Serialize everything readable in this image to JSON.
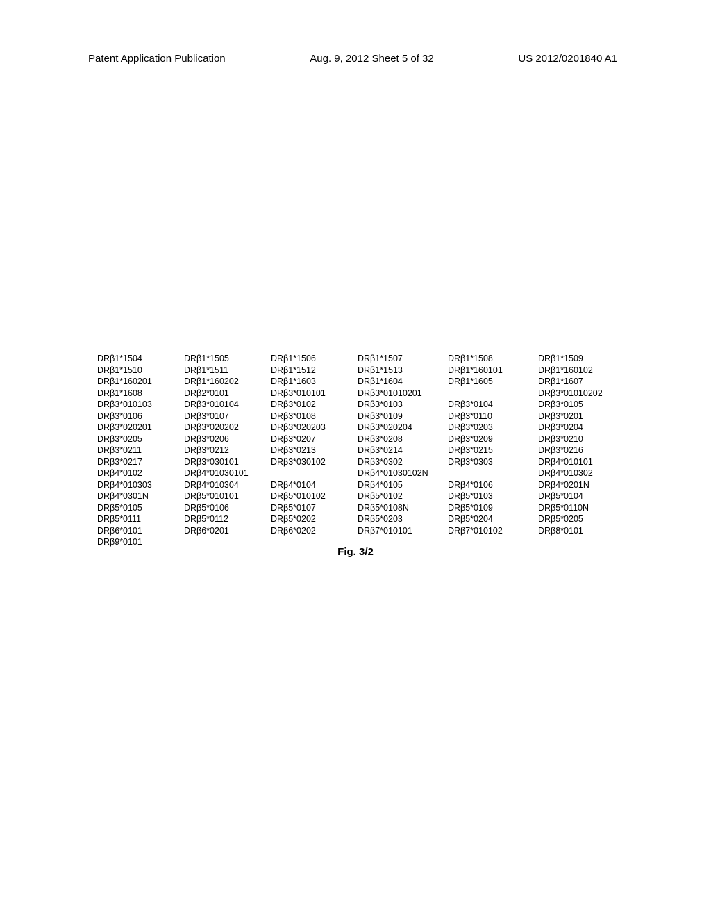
{
  "header": {
    "left": "Patent Application Publication",
    "center": "Aug. 9, 2012  Sheet 5 of 32",
    "right": "US 2012/0201840 A1"
  },
  "figure_caption": "Fig. 3/2",
  "allele_rows": [
    {
      "cells": [
        "DRβ1*1504",
        "DRβ1*1505",
        "DRβ1*1506",
        "DRβ1*1507",
        "DRβ1*1508",
        "DRβ1*1509"
      ]
    },
    {
      "cells": [
        "DRβ1*1510",
        "DRβ1*1511",
        "DRβ1*1512",
        "DRβ1*1513",
        "DRβ1*160101",
        "DRβ1*160102"
      ]
    },
    {
      "cells": [
        "DRβ1*160201",
        "DRβ1*160202",
        "DRβ1*1603",
        "DRβ1*1604",
        "DRβ1*1605",
        "DRβ1*1607"
      ]
    },
    {
      "cells": [
        "DRβ1*1608",
        "DRβ2*0101",
        "DRβ3*010101",
        "DRβ3*01010201",
        "",
        "DRβ3*01010202"
      ],
      "span": [
        false,
        false,
        false,
        true,
        false,
        false
      ],
      "spanIndex": 3
    },
    {
      "cells": [
        "DRβ3*010103",
        "DRβ3*010104",
        "DRβ3*0102",
        "DRβ3*0103",
        "DRβ3*0104",
        "DRβ3*0105"
      ]
    },
    {
      "cells": [
        "DRβ3*0106",
        "DRβ3*0107",
        "DRβ3*0108",
        "DRβ3*0109",
        "DRβ3*0110",
        "DRβ3*0201"
      ]
    },
    {
      "cells": [
        "DRβ3*020201",
        "DRβ3*020202",
        "DRβ3*020203",
        "DRβ3*020204",
        "DRβ3*0203",
        "DRβ3*0204"
      ]
    },
    {
      "cells": [
        "DRβ3*0205",
        "DRβ3*0206",
        "DRβ3*0207",
        "DRβ3*0208",
        "DRβ3*0209",
        "DRβ3*0210"
      ]
    },
    {
      "cells": [
        "DRβ3*0211",
        "DRβ3*0212",
        "DRβ3*0213",
        "DRβ3*0214",
        "DRβ3*0215",
        "DRβ3*0216"
      ]
    },
    {
      "cells": [
        "DRβ3*0217",
        "DRβ3*030101",
        "DRβ3*030102",
        "DRβ3*0302",
        "DRβ3*0303",
        "DRβ4*010101"
      ]
    },
    {
      "cells": [
        "DRβ4*0102",
        "DRβ4*01030101",
        "",
        "DRβ4*01030102N",
        "",
        "DRβ4*010302"
      ],
      "spanIndices": [
        1,
        3
      ]
    },
    {
      "cells": [
        "DRβ4*010303",
        "DRβ4*010304",
        "DRβ4*0104",
        "DRβ4*0105",
        "DRβ4*0106",
        "DRβ4*0201N"
      ]
    },
    {
      "cells": [
        "DRβ4*0301N",
        "DRβ5*010101",
        "DRβ5*010102",
        "DRβ5*0102",
        "DRβ5*0103",
        "DRβ5*0104"
      ]
    },
    {
      "cells": [
        "DRβ5*0105",
        "DRβ5*0106",
        "DRβ5*0107",
        "DRβ5*0108N",
        "DRβ5*0109",
        "DRβ5*0110N"
      ]
    },
    {
      "cells": [
        "DRβ5*0111",
        "DRβ5*0112",
        "DRβ5*0202",
        "DRβ5*0203",
        "DRβ5*0204",
        "DRβ5*0205"
      ]
    },
    {
      "cells": [
        "DRβ6*0101",
        "DRβ6*0201",
        "DRβ6*0202",
        "DRβ7*010101",
        "DRβ7*010102",
        "DRβ8*0101"
      ]
    },
    {
      "cells": [
        "DRβ9*0101",
        "",
        "",
        "",
        "",
        ""
      ]
    }
  ]
}
